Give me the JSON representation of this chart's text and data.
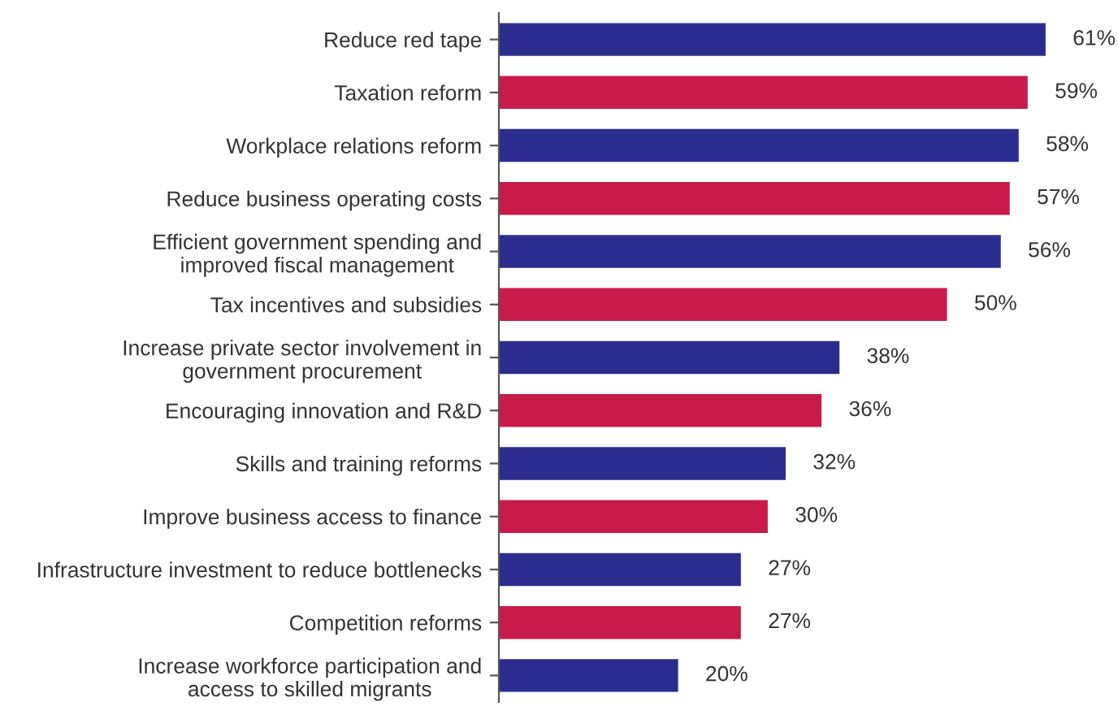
{
  "chart_data": {
    "type": "bar",
    "orientation": "horizontal",
    "categories": [
      "Reduce red tape",
      "Taxation reform",
      "Workplace relations reform",
      "Reduce business operating costs",
      "Efficient government spending and\nimproved fiscal management",
      "Tax incentives and subsidies",
      "Increase private sector involvement in\ngovernment procurement",
      "Encouraging innovation and R&D",
      "Skills and training reforms",
      "Improve business access to finance",
      "Infrastructure investment to reduce bottlenecks",
      "Competition reforms",
      "Increase workforce participation and\naccess to skilled migrants"
    ],
    "values": [
      61,
      59,
      58,
      57,
      56,
      50,
      38,
      36,
      32,
      30,
      27,
      27,
      20
    ],
    "value_labels": [
      "61%",
      "59%",
      "58%",
      "57%",
      "56%",
      "50%",
      "38%",
      "36%",
      "32%",
      "30%",
      "27%",
      "27%",
      "20%"
    ],
    "colors": [
      "#2b2d8e",
      "#c81b4c",
      "#2b2d8e",
      "#c81b4c",
      "#2b2d8e",
      "#c81b4c",
      "#2b2d8e",
      "#c81b4c",
      "#2b2d8e",
      "#c81b4c",
      "#2b2d8e",
      "#c81b4c",
      "#2b2d8e"
    ],
    "grid": false,
    "legend": false
  }
}
